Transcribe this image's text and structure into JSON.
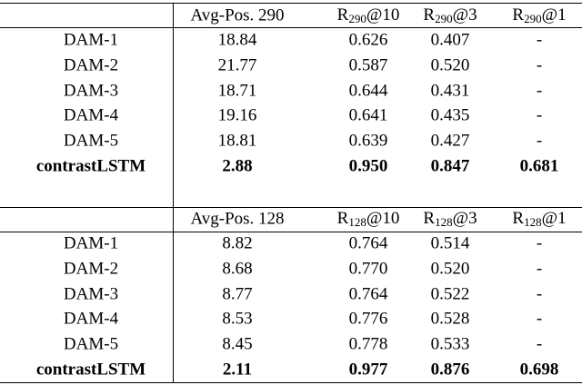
{
  "tables": [
    {
      "header": [
        "Avg-Pos. 290",
        {
          "base": "R",
          "sub": "290",
          "suffix": "@10"
        },
        {
          "base": "R",
          "sub": "290",
          "suffix": "@3"
        },
        {
          "base": "R",
          "sub": "290",
          "suffix": "@1"
        }
      ],
      "rows": [
        [
          "DAM-1",
          "18.84",
          "0.626",
          "0.407",
          "-"
        ],
        [
          "DAM-2",
          "21.77",
          "0.587",
          "0.520",
          "-"
        ],
        [
          "DAM-3",
          "18.71",
          "0.644",
          "0.431",
          "-"
        ],
        [
          "DAM-4",
          "19.16",
          "0.641",
          "0.435",
          "-"
        ],
        [
          "DAM-5",
          "18.81",
          "0.639",
          "0.427",
          "-"
        ],
        [
          "contrastLSTM",
          "2.88",
          "0.950",
          "0.847",
          "0.681"
        ]
      ]
    },
    {
      "header": [
        "Avg-Pos. 128",
        {
          "base": "R",
          "sub": "128",
          "suffix": "@10"
        },
        {
          "base": "R",
          "sub": "128",
          "suffix": "@3"
        },
        {
          "base": "R",
          "sub": "128",
          "suffix": "@1"
        }
      ],
      "rows": [
        [
          "DAM-1",
          "8.82",
          "0.764",
          "0.514",
          "-"
        ],
        [
          "DAM-2",
          "8.68",
          "0.770",
          "0.520",
          "-"
        ],
        [
          "DAM-3",
          "8.77",
          "0.764",
          "0.522",
          "-"
        ],
        [
          "DAM-4",
          "8.53",
          "0.776",
          "0.528",
          "-"
        ],
        [
          "DAM-5",
          "8.45",
          "0.778",
          "0.533",
          "-"
        ],
        [
          "contrastLSTM",
          "2.11",
          "0.977",
          "0.876",
          "0.698"
        ]
      ]
    }
  ]
}
